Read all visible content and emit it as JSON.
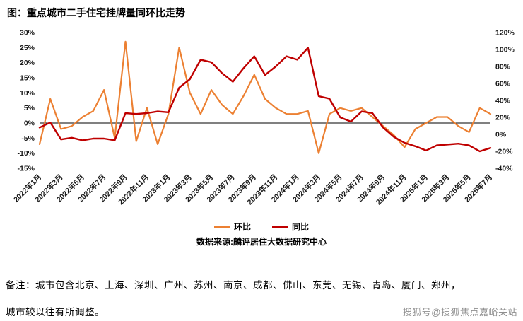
{
  "title": "图：重点城市二手住宅挂牌量同环比走势",
  "source": "数据来源:麟评居住大数据研究中心",
  "note_line1": "备注：城市包含北京、上海、深圳、广州、苏州、南京、成都、佛山、东莞、无锡、青岛、厦门、郑州，",
  "note_line2": "城市较以往有所调整。",
  "watermark": "搜狐号@搜狐焦点嘉峪关站",
  "colors": {
    "mom_line": "#EC8032",
    "yoy_line": "#BF0000",
    "axis_text": "#1a1a1a",
    "zero_line": "#000000",
    "watermark_gray": "#8f8f8f"
  },
  "chart_data": {
    "type": "line",
    "title": "重点城市二手住宅挂牌量同环比走势",
    "x": [
      "2022年1月",
      "2022年2月",
      "2022年3月",
      "2022年4月",
      "2022年5月",
      "2022年6月",
      "2022年7月",
      "2022年8月",
      "2022年9月",
      "2022年10月",
      "2022年11月",
      "2022年12月",
      "2023年1月",
      "2023年2月",
      "2023年3月",
      "2023年4月",
      "2023年5月",
      "2023年6月",
      "2023年7月",
      "2023年8月",
      "2023年9月",
      "2023年10月",
      "2023年11月",
      "2023年12月",
      "2024年1月",
      "2024年2月",
      "2024年3月",
      "2024年4月",
      "2024年5月",
      "2024年6月",
      "2024年7月",
      "2024年8月",
      "2024年9月",
      "2024年10月",
      "2024年11月",
      "2024年12月",
      "2025年1月",
      "2025年2月",
      "2025年3月",
      "2025年4月",
      "2025年5月",
      "2025年6月",
      "2025年7月"
    ],
    "x_tick_every": 2,
    "series": [
      {
        "name": "环比",
        "axis": "left",
        "color": "#EC8032",
        "values": [
          -7,
          8,
          -2,
          -1,
          2,
          4,
          11,
          -5,
          27,
          -6,
          5,
          -7,
          3,
          25,
          10,
          3,
          11,
          6,
          3,
          9,
          16,
          8,
          5,
          3,
          3,
          4,
          -10,
          3,
          5,
          4,
          5,
          2,
          -1,
          -4,
          -8,
          -2,
          0,
          2,
          2,
          -1,
          -3,
          5,
          3
        ]
      },
      {
        "name": "同比",
        "axis": "right",
        "color": "#BF0000",
        "values": [
          8,
          14,
          -6,
          -4,
          -7,
          -5,
          -5,
          -7,
          25,
          24,
          25,
          27,
          26,
          55,
          65,
          88,
          85,
          72,
          62,
          78,
          92,
          70,
          80,
          92,
          88,
          102,
          45,
          42,
          20,
          15,
          27,
          25,
          8,
          -3,
          -10,
          -14,
          -19,
          -13,
          -12,
          -11,
          -13,
          -20,
          -16
        ]
      }
    ],
    "left_axis": {
      "min": -15,
      "max": 30,
      "ticks": [
        30,
        25,
        20,
        15,
        10,
        5,
        0,
        -5,
        -10,
        -15
      ],
      "unit": "%"
    },
    "right_axis": {
      "min": -40,
      "max": 120,
      "ticks": [
        120,
        100,
        80,
        60,
        40,
        20,
        0,
        -20,
        -40
      ],
      "unit": "%"
    },
    "grid": false,
    "legend_position": "bottom"
  }
}
